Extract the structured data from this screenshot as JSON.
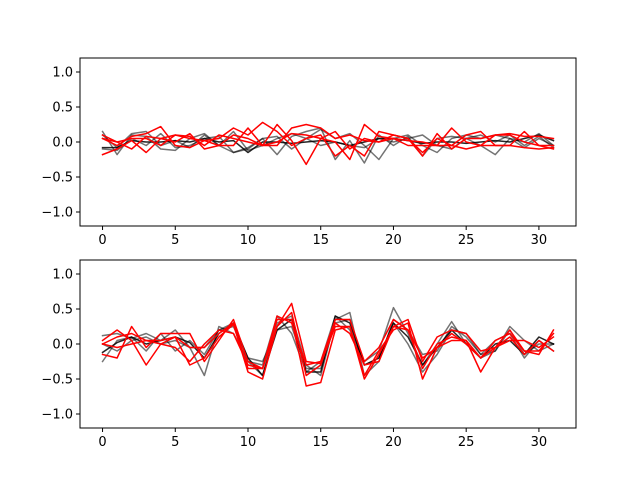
{
  "colors": {
    "gray_series": "#000000",
    "red_series": "#ff0000",
    "background": "#ffffff"
  },
  "chart_data": [
    {
      "type": "line",
      "panel": "top",
      "title": "",
      "xlabel": "",
      "ylabel": "",
      "xlim": [
        -1.55,
        32.55
      ],
      "ylim": [
        -1.2,
        1.2
      ],
      "xticks": [
        0,
        5,
        10,
        15,
        20,
        25,
        30
      ],
      "yticks": [
        -1.0,
        -0.5,
        0.0,
        0.5,
        1.0
      ],
      "xtick_labels": [
        "0",
        "5",
        "10",
        "15",
        "20",
        "25",
        "30"
      ],
      "ytick_labels": [
        "−1.0",
        "−0.5",
        "0.0",
        "0.5",
        "1.0"
      ],
      "grid": false,
      "x": [
        0,
        1,
        2,
        3,
        4,
        5,
        6,
        7,
        8,
        9,
        10,
        11,
        12,
        13,
        14,
        15,
        16,
        17,
        18,
        19,
        20,
        21,
        22,
        23,
        24,
        25,
        26,
        27,
        28,
        29,
        30,
        31
      ],
      "series": [
        {
          "color": "#000000",
          "opacity": 0.55,
          "values": [
            0.15,
            -0.18,
            0.1,
            0.08,
            -0.1,
            -0.12,
            0.05,
            0.12,
            -0.05,
            -0.15,
            -0.1,
            0.05,
            -0.18,
            0.08,
            0.15,
            0.2,
            -0.25,
            0.02,
            -0.3,
            0.1,
            -0.05,
            0.08,
            -0.2,
            0.05,
            0.08,
            0.05,
            -0.05,
            -0.18,
            0.05,
            0.0,
            0.12,
            -0.05
          ]
        },
        {
          "color": "#000000",
          "opacity": 0.55,
          "values": [
            0.1,
            -0.08,
            0.12,
            0.15,
            -0.05,
            0.02,
            -0.08,
            0.1,
            -0.05,
            0.15,
            -0.12,
            -0.05,
            0.05,
            0.12,
            0.05,
            0.18,
            0.05,
            0.12,
            -0.05,
            -0.25,
            0.05,
            0.1,
            -0.05,
            -0.15,
            0.05,
            0.1,
            0.05,
            0.1,
            0.05,
            -0.08,
            0.05,
            -0.05
          ]
        },
        {
          "color": "#000000",
          "opacity": 0.55,
          "values": [
            -0.1,
            -0.12,
            0.05,
            -0.05,
            0.12,
            -0.08,
            -0.05,
            0.05,
            0.08,
            -0.15,
            -0.08,
            0.05,
            0.08,
            -0.1,
            0.05,
            -0.05,
            0.0,
            -0.05,
            -0.08,
            0.05,
            0.0,
            0.05,
            0.1,
            -0.05,
            -0.1,
            0.05,
            0.1,
            0.0,
            0.1,
            -0.05,
            0.08,
            -0.08
          ]
        },
        {
          "color": "#000000",
          "opacity": 0.85,
          "values": [
            -0.08,
            -0.08,
            0.02,
            0.0,
            0.0,
            0.02,
            0.0,
            0.05,
            0.0,
            0.02,
            -0.15,
            0.0,
            0.0,
            -0.02,
            0.0,
            0.02,
            0.0,
            -0.05,
            0.0,
            0.05,
            0.05,
            0.02,
            -0.02,
            0.0,
            0.0,
            -0.02,
            0.0,
            0.02,
            0.0,
            0.05,
            0.1,
            0.02
          ]
        },
        {
          "color": "#ff0000",
          "opacity": 1.0,
          "values": [
            -0.18,
            -0.1,
            0.02,
            -0.15,
            0.05,
            0.1,
            0.05,
            0.02,
            -0.05,
            -0.05,
            0.2,
            -0.05,
            0.25,
            0.02,
            -0.32,
            0.05,
            0.15,
            -0.1,
            0.05,
            0.0,
            0.1,
            0.05,
            -0.2,
            0.12,
            -0.1,
            0.05,
            0.05,
            0.1,
            0.12,
            0.08,
            0.08,
            0.05
          ]
        },
        {
          "color": "#ff0000",
          "opacity": 1.0,
          "values": [
            0.05,
            -0.05,
            0.08,
            0.12,
            0.22,
            -0.05,
            -0.08,
            0.02,
            0.05,
            0.2,
            0.1,
            0.28,
            0.15,
            -0.05,
            0.05,
            0.1,
            -0.2,
            -0.05,
            -0.2,
            0.15,
            0.1,
            0.05,
            -0.15,
            0.05,
            -0.05,
            0.1,
            0.15,
            -0.05,
            -0.05,
            0.15,
            -0.05,
            -0.05
          ]
        },
        {
          "color": "#ff0000",
          "opacity": 1.0,
          "values": [
            0.05,
            0.0,
            -0.1,
            0.08,
            0.05,
            0.0,
            0.12,
            -0.1,
            -0.05,
            0.1,
            0.05,
            -0.05,
            0.0,
            0.12,
            0.1,
            0.05,
            0.0,
            -0.25,
            0.25,
            0.08,
            0.05,
            -0.05,
            -0.05,
            -0.05,
            -0.05,
            -0.1,
            -0.05,
            -0.05,
            -0.05,
            -0.08,
            -0.1,
            -0.08
          ]
        },
        {
          "color": "#ff0000",
          "opacity": 1.0,
          "values": [
            0.1,
            0.0,
            0.05,
            0.05,
            -0.05,
            0.1,
            0.08,
            -0.05,
            0.1,
            0.05,
            0.0,
            -0.05,
            -0.05,
            0.2,
            0.25,
            0.2,
            0.05,
            0.1,
            0.02,
            0.0,
            0.05,
            0.02,
            0.0,
            -0.05,
            0.2,
            0.0,
            -0.05,
            0.1,
            0.1,
            0.0,
            -0.05,
            -0.1
          ]
        }
      ]
    },
    {
      "type": "line",
      "panel": "bottom",
      "title": "",
      "xlabel": "",
      "ylabel": "",
      "xlim": [
        -1.55,
        32.55
      ],
      "ylim": [
        -1.2,
        1.2
      ],
      "xticks": [
        0,
        5,
        10,
        15,
        20,
        25,
        30
      ],
      "yticks": [
        -1.0,
        -0.5,
        0.0,
        0.5,
        1.0
      ],
      "xtick_labels": [
        "0",
        "5",
        "10",
        "15",
        "20",
        "25",
        "30"
      ],
      "ytick_labels": [
        "−1.0",
        "−0.5",
        "0.0",
        "0.5",
        "1.0"
      ],
      "grid": false,
      "x": [
        0,
        1,
        2,
        3,
        4,
        5,
        6,
        7,
        8,
        9,
        10,
        11,
        12,
        13,
        14,
        15,
        16,
        17,
        18,
        19,
        20,
        21,
        22,
        23,
        24,
        25,
        26,
        27,
        28,
        29,
        30,
        31
      ],
      "series": [
        {
          "color": "#000000",
          "opacity": 0.55,
          "values": [
            0.12,
            0.15,
            0.08,
            0.15,
            0.05,
            0.2,
            -0.05,
            -0.45,
            0.25,
            0.15,
            -0.25,
            -0.3,
            0.4,
            0.15,
            -0.4,
            -0.25,
            0.4,
            0.2,
            -0.25,
            -0.1,
            0.52,
            0.15,
            -0.3,
            0.0,
            0.32,
            0.0,
            -0.2,
            -0.1,
            0.25,
            0.05,
            -0.1,
            0.0
          ]
        },
        {
          "color": "#000000",
          "opacity": 0.55,
          "values": [
            -0.25,
            0.05,
            0.1,
            -0.1,
            0.15,
            -0.1,
            0.05,
            -0.15,
            0.2,
            0.3,
            -0.25,
            -0.45,
            0.3,
            0.4,
            -0.3,
            -0.45,
            0.35,
            0.45,
            -0.45,
            -0.25,
            0.35,
            0.2,
            -0.15,
            -0.1,
            0.25,
            0.1,
            -0.15,
            0.05,
            0.15,
            -0.2,
            0.05,
            -0.1
          ]
        },
        {
          "color": "#000000",
          "opacity": 0.55,
          "values": [
            0.0,
            -0.1,
            0.05,
            0.1,
            0.0,
            0.05,
            -0.05,
            -0.05,
            0.2,
            0.25,
            -0.2,
            -0.25,
            0.2,
            0.25,
            -0.35,
            -0.35,
            0.3,
            0.35,
            -0.3,
            -0.2,
            0.3,
            0.0,
            -0.4,
            -0.15,
            0.2,
            0.15,
            -0.15,
            -0.1,
            0.2,
            -0.15,
            0.0,
            0.0
          ]
        },
        {
          "color": "#000000",
          "opacity": 0.85,
          "values": [
            -0.12,
            0.02,
            0.1,
            0.0,
            0.05,
            0.1,
            0.02,
            -0.2,
            0.15,
            0.3,
            -0.2,
            -0.45,
            0.2,
            0.35,
            -0.4,
            -0.4,
            0.4,
            0.3,
            -0.3,
            -0.2,
            0.3,
            0.1,
            -0.3,
            -0.05,
            0.2,
            0.0,
            -0.2,
            0.0,
            0.05,
            -0.15,
            0.1,
            0.0
          ]
        },
        {
          "color": "#ff0000",
          "opacity": 1.0,
          "values": [
            -0.15,
            -0.2,
            0.25,
            -0.05,
            0.15,
            0.15,
            0.15,
            -0.25,
            0.05,
            0.35,
            -0.25,
            -0.35,
            0.25,
            0.58,
            -0.25,
            -0.28,
            0.25,
            0.25,
            -0.45,
            -0.1,
            0.2,
            0.3,
            -0.5,
            -0.05,
            0.05,
            0.05,
            -0.4,
            -0.05,
            0.05,
            0.05,
            -0.05,
            0.1
          ]
        },
        {
          "color": "#ff0000",
          "opacity": 1.0,
          "values": [
            0.05,
            0.2,
            0.05,
            -0.3,
            0.0,
            0.1,
            -0.3,
            -0.2,
            0.1,
            0.28,
            -0.4,
            -0.5,
            0.25,
            0.45,
            -0.45,
            -0.3,
            0.3,
            0.15,
            -0.3,
            -0.25,
            0.25,
            0.35,
            -0.25,
            0.1,
            0.2,
            0.15,
            -0.1,
            -0.05,
            0.2,
            -0.1,
            -0.15,
            0.2
          ]
        },
        {
          "color": "#ff0000",
          "opacity": 1.0,
          "values": [
            0.0,
            0.1,
            0.15,
            0.05,
            0.0,
            -0.05,
            -0.25,
            0.0,
            0.2,
            0.15,
            -0.3,
            -0.35,
            0.4,
            0.3,
            -0.3,
            -0.25,
            0.35,
            0.35,
            -0.25,
            -0.05,
            0.35,
            0.2,
            -0.2,
            -0.05,
            0.15,
            0.0,
            -0.2,
            0.05,
            0.15,
            -0.1,
            -0.1,
            0.15
          ]
        },
        {
          "color": "#ff0000",
          "opacity": 1.0,
          "values": [
            0.0,
            -0.05,
            0.0,
            0.05,
            0.05,
            0.1,
            -0.05,
            -0.05,
            0.15,
            0.3,
            -0.35,
            -0.35,
            0.35,
            0.35,
            -0.6,
            -0.55,
            0.2,
            0.25,
            -0.5,
            -0.15,
            0.25,
            0.2,
            -0.35,
            0.0,
            0.1,
            0.05,
            -0.2,
            -0.05,
            0.1,
            -0.15,
            0.05,
            -0.1
          ]
        }
      ]
    }
  ]
}
